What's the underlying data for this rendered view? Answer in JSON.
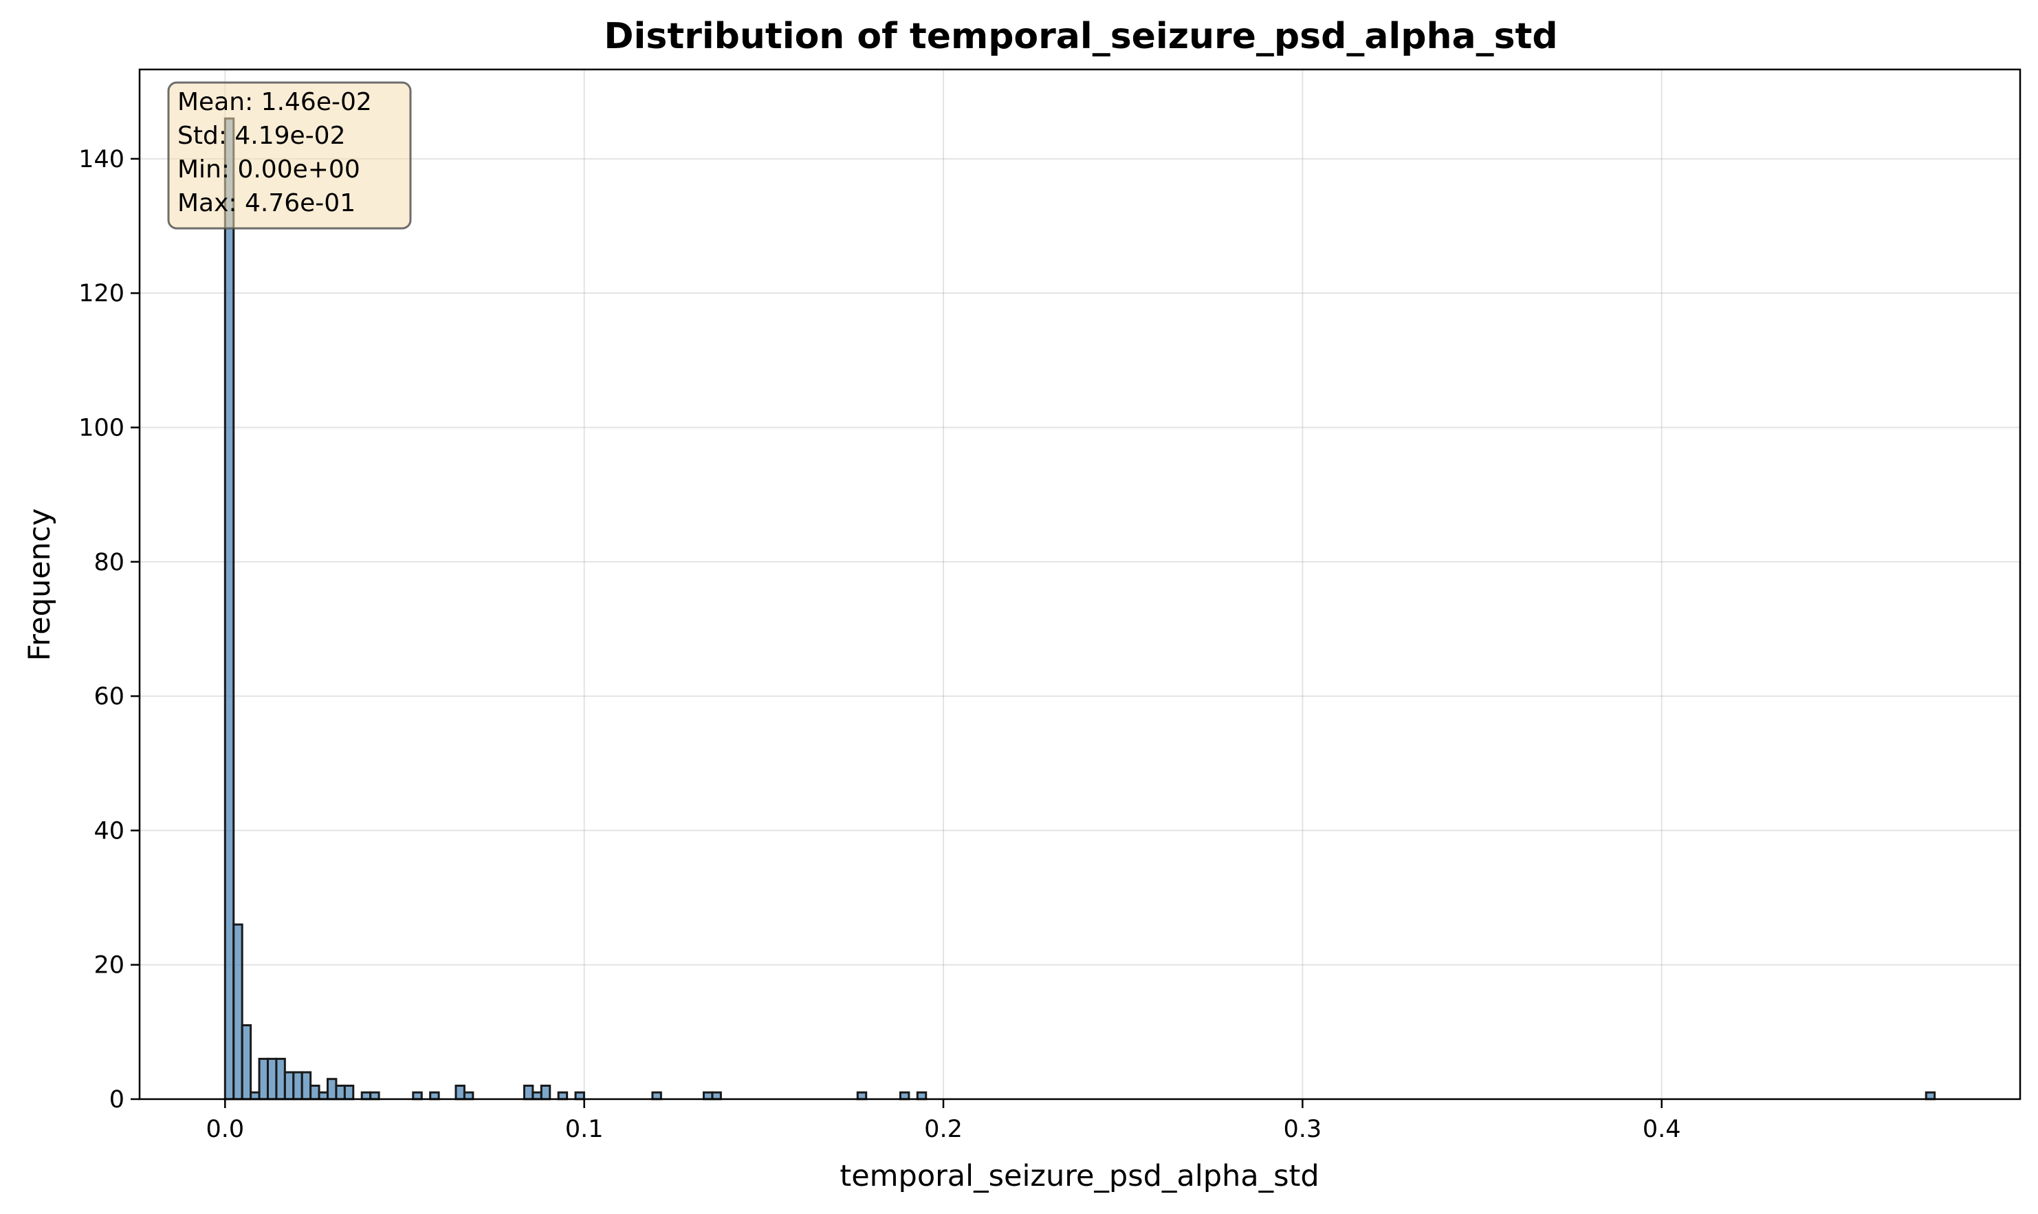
{
  "chart_data": {
    "type": "bar",
    "title": "Distribution of temporal_seizure_psd_alpha_std",
    "xlabel": "temporal_seizure_psd_alpha_std",
    "ylabel": "Frequency",
    "xlim": [
      -0.0238,
      0.4998
    ],
    "ylim": [
      0,
      153.3
    ],
    "grid": true,
    "bin_width": 0.00238,
    "bar_color": "#4682b4",
    "edge_color": "#1a1a1a",
    "x_ticks": [
      0.0,
      0.1,
      0.2,
      0.3,
      0.4
    ],
    "x_tick_labels": [
      "0.0",
      "0.1",
      "0.2",
      "0.3",
      "0.4"
    ],
    "y_ticks": [
      0,
      20,
      40,
      60,
      80,
      100,
      120,
      140
    ],
    "y_tick_labels": [
      "0",
      "20",
      "40",
      "60",
      "80",
      "100",
      "120",
      "140"
    ],
    "bins": [
      {
        "x": 0.0,
        "count": 146
      },
      {
        "x": 0.00238,
        "count": 26
      },
      {
        "x": 0.00476,
        "count": 11
      },
      {
        "x": 0.00714,
        "count": 1
      },
      {
        "x": 0.00952,
        "count": 6
      },
      {
        "x": 0.0119,
        "count": 6
      },
      {
        "x": 0.01428,
        "count": 6
      },
      {
        "x": 0.01666,
        "count": 4
      },
      {
        "x": 0.01904,
        "count": 4
      },
      {
        "x": 0.02142,
        "count": 4
      },
      {
        "x": 0.0238,
        "count": 2
      },
      {
        "x": 0.02618,
        "count": 1
      },
      {
        "x": 0.02856,
        "count": 3
      },
      {
        "x": 0.03094,
        "count": 2
      },
      {
        "x": 0.03332,
        "count": 2
      },
      {
        "x": 0.03808,
        "count": 1
      },
      {
        "x": 0.04046,
        "count": 1
      },
      {
        "x": 0.05236,
        "count": 1
      },
      {
        "x": 0.05712,
        "count": 1
      },
      {
        "x": 0.06426,
        "count": 2
      },
      {
        "x": 0.06664,
        "count": 1
      },
      {
        "x": 0.0833,
        "count": 2
      },
      {
        "x": 0.08568,
        "count": 1
      },
      {
        "x": 0.08806,
        "count": 2
      },
      {
        "x": 0.09282,
        "count": 1
      },
      {
        "x": 0.09758,
        "count": 1
      },
      {
        "x": 0.119,
        "count": 1
      },
      {
        "x": 0.13328,
        "count": 1
      },
      {
        "x": 0.13566,
        "count": 1
      },
      {
        "x": 0.17612,
        "count": 1
      },
      {
        "x": 0.18802,
        "count": 1
      },
      {
        "x": 0.19278,
        "count": 1
      },
      {
        "x": 0.47362,
        "count": 1
      }
    ],
    "annotation": {
      "lines": [
        "Mean: 1.46e-02",
        "Std: 4.19e-02",
        "Min: 0.00e+00",
        "Max: 4.76e-01"
      ],
      "box_color": "#f5deb3",
      "placement": "top-left"
    }
  }
}
